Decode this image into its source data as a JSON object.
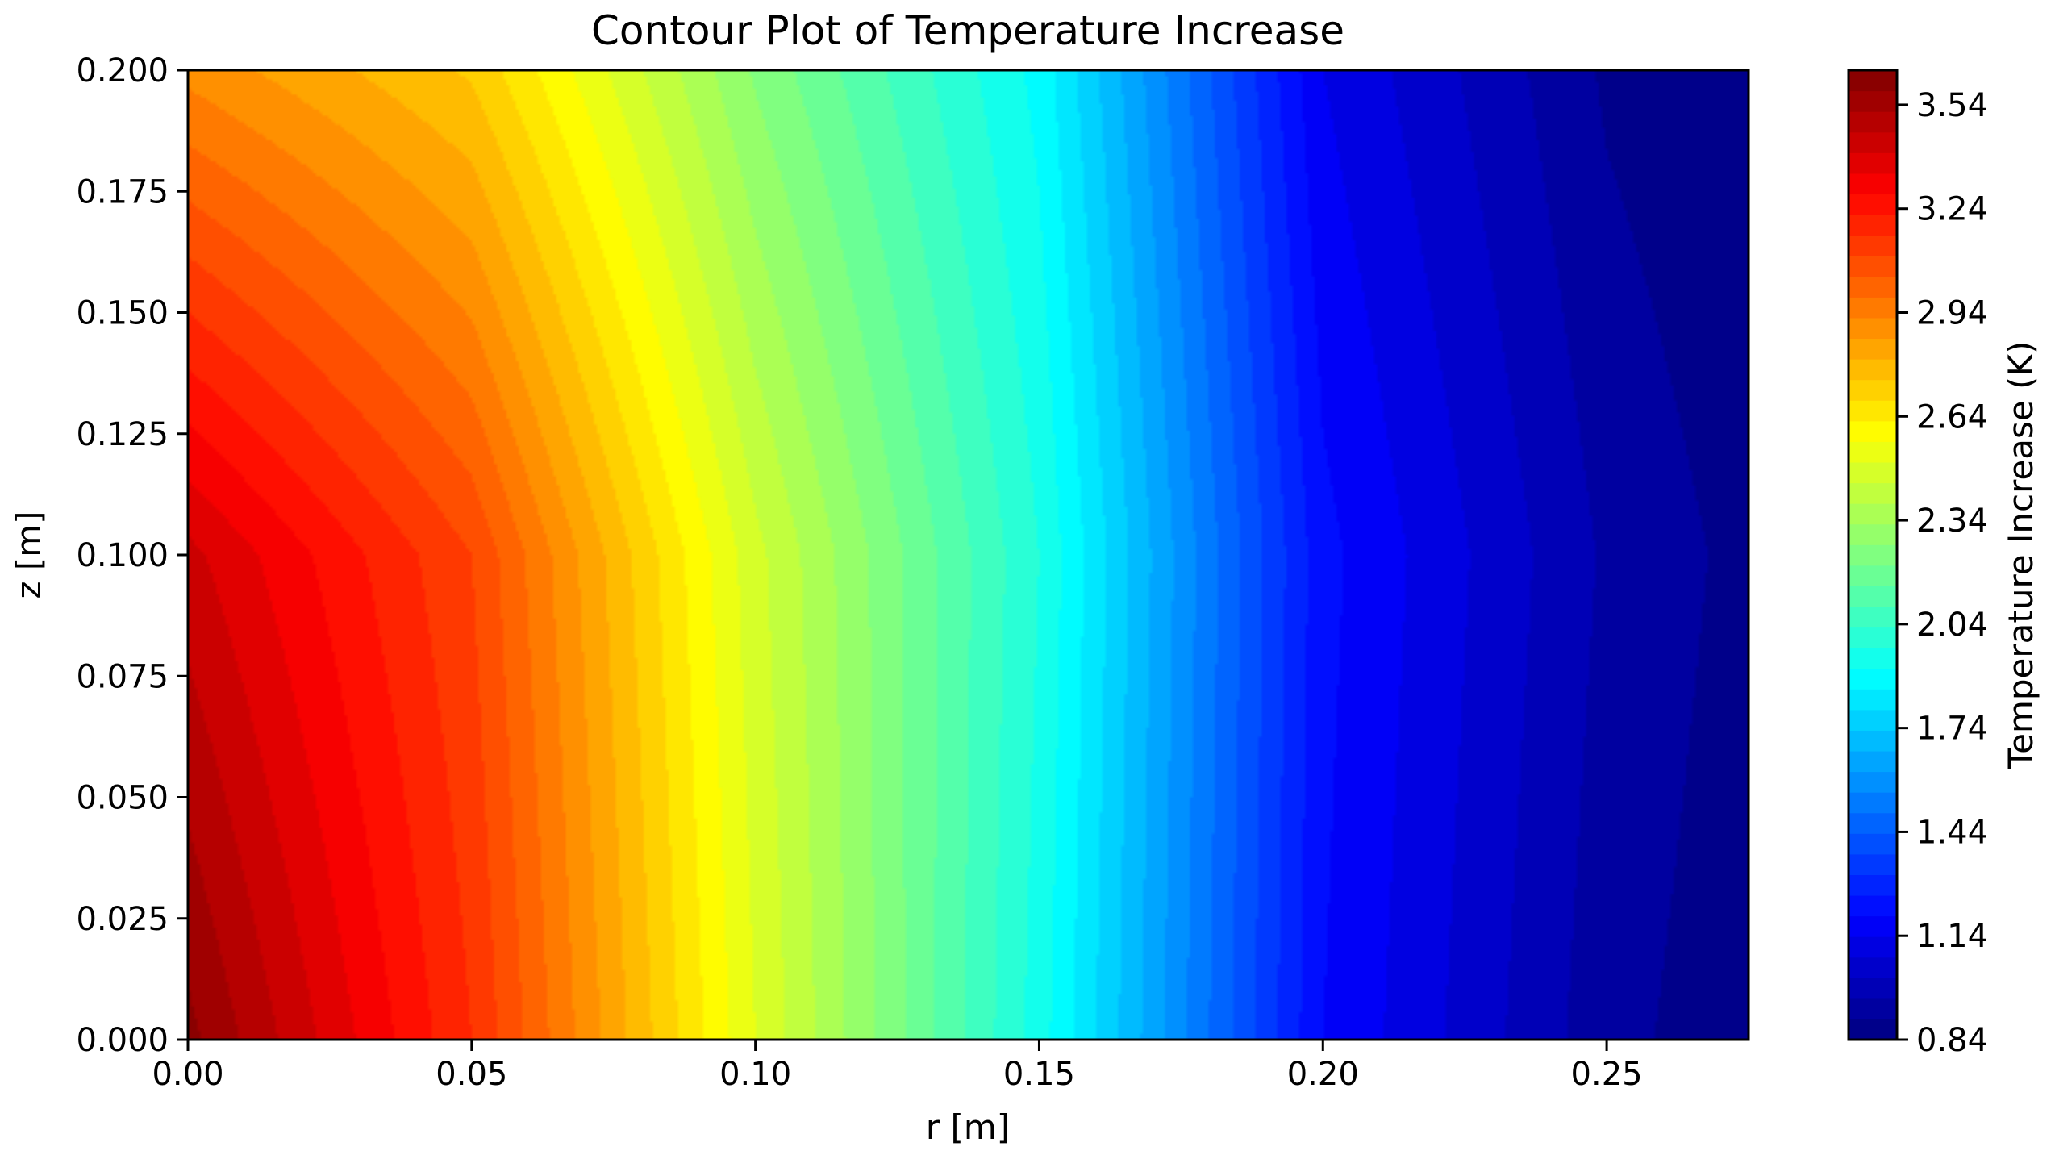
{
  "chart_data": {
    "type": "heatmap",
    "subtype": "filled-contour",
    "title": "Contour Plot of Temperature Increase",
    "xlabel": "r [m]",
    "ylabel": "z [m]",
    "xlim": [
      0.0,
      0.275
    ],
    "ylim": [
      0.0,
      0.2
    ],
    "x_ticks": [
      0.0,
      0.05,
      0.1,
      0.15,
      0.2,
      0.25
    ],
    "x_tick_labels": [
      "0.00",
      "0.05",
      "0.10",
      "0.15",
      "0.20",
      "0.25"
    ],
    "y_ticks": [
      0.0,
      0.025,
      0.05,
      0.075,
      0.1,
      0.125,
      0.15,
      0.175,
      0.2
    ],
    "y_tick_labels": [
      "0.000",
      "0.025",
      "0.050",
      "0.075",
      "0.100",
      "0.125",
      "0.150",
      "0.175",
      "0.200"
    ],
    "colormap": "jet",
    "grid": false,
    "levels": {
      "min": 0.84,
      "max": 3.64,
      "step": 0.06
    },
    "field_samples": {
      "r": [
        0.0,
        0.05,
        0.1,
        0.15,
        0.2,
        0.25,
        0.275
      ],
      "z": [
        0.0,
        0.1,
        0.2
      ],
      "T": [
        [
          3.62,
          3.18,
          2.52,
          1.95,
          1.2,
          0.92,
          0.86
        ],
        [
          3.44,
          3.12,
          2.48,
          1.98,
          1.22,
          0.95,
          0.88
        ],
        [
          2.92,
          2.75,
          2.27,
          1.9,
          1.14,
          0.89,
          0.84
        ]
      ]
    },
    "colorbar": {
      "label": "Temperature Increase (K)",
      "range": [
        0.84,
        3.64
      ],
      "ticks": [
        0.84,
        1.14,
        1.44,
        1.74,
        2.04,
        2.34,
        2.64,
        2.94,
        3.24,
        3.54
      ],
      "tick_labels": [
        "0.84",
        "1.14",
        "1.44",
        "1.74",
        "2.04",
        "2.34",
        "2.64",
        "2.94",
        "3.24",
        "3.54"
      ]
    }
  }
}
